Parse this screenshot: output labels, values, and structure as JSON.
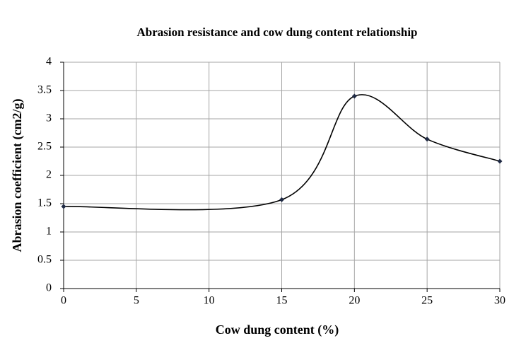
{
  "chart_data": {
    "type": "line",
    "title": "Abrasion resistance and cow dung content relationship",
    "xlabel": "Cow dung content (%)",
    "ylabel": "Abrasion coefficient (cm2/g)",
    "x": [
      0,
      15,
      20,
      25,
      30
    ],
    "series": [
      {
        "name": "Abrasion coefficient",
        "color": "#000000",
        "values": [
          1.45,
          1.57,
          3.4,
          2.64,
          2.25
        ]
      }
    ],
    "xlim": [
      0,
      30
    ],
    "xticks": [
      0,
      5,
      10,
      15,
      20,
      25,
      30
    ],
    "ylim": [
      0,
      4
    ],
    "yticks": [
      0,
      0.5,
      1,
      1.5,
      2,
      2.5,
      3,
      3.5,
      4
    ],
    "grid": true,
    "smooth": true
  }
}
